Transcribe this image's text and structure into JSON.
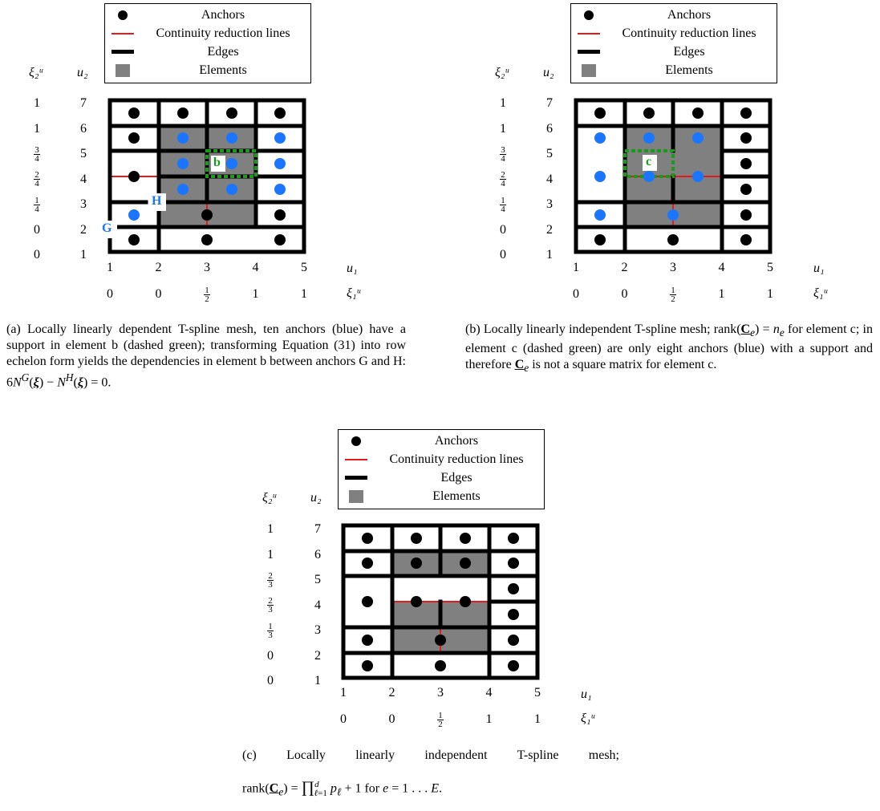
{
  "colors": {
    "anchor_black": "#000000",
    "anchor_blue": "#1a75ff",
    "continuity_red": "#e41a1c",
    "element_gray": "#808080",
    "dashed_green": "#1a9a1a",
    "label_blue": "#1a75ff",
    "label_green": "#1a9a1a"
  },
  "legend": {
    "anchors": "Anchors",
    "continuity": "Continuity reduction lines",
    "edges": "Edges",
    "elements": "Elements"
  },
  "axes": {
    "y_param_label": "ξ₂ᵘ",
    "y_index_label": "u₂",
    "x_index_label": "u₁",
    "x_param_label": "ξ₁ᵘ",
    "u_ticks": [
      "1",
      "2",
      "3",
      "4",
      "5"
    ],
    "v_ticks": [
      "1",
      "2",
      "3",
      "4",
      "5",
      "6",
      "7"
    ]
  },
  "panels": [
    {
      "id": "a",
      "xi2": [
        "0",
        "0",
        "1/4",
        "2/4",
        "3/4",
        "1",
        "1"
      ],
      "xi1": [
        "0",
        "0",
        "1/2",
        "1",
        "1"
      ],
      "labels": {
        "b": "b",
        "G": "G",
        "H": "H"
      },
      "caption": "(a) Locally linearly dependent T-spline mesh, ten anchors (blue) have a support in element b (dashed green); transforming Equation (31) into row echelon form yields the dependencies in element b between anchors G and H: 6N^G(ξ) − N^H(ξ) = 0."
    },
    {
      "id": "b",
      "xi2": [
        "0",
        "0",
        "1/4",
        "2/4",
        "3/4",
        "1",
        "1"
      ],
      "xi1": [
        "0",
        "0",
        "1/2",
        "1",
        "1"
      ],
      "labels": {
        "c": "c"
      },
      "caption": "(b) Locally linearly independent T-spline mesh; rank(C_e) = n_e for element c; in element c (dashed green) are only eight anchors (blue) with a support and therefore C_e is not a square matrix for element c."
    },
    {
      "id": "c",
      "xi2": [
        "0",
        "0",
        "1/3",
        "2/3",
        "2/3",
        "1",
        "1"
      ],
      "xi1": [
        "0",
        "0",
        "1/2",
        "1",
        "1"
      ],
      "caption_line1": "(c) Locally linearly independent T-spline mesh;",
      "caption_line2": "rank(C_e) = ∏ p_ℓ + 1 for e = 1 . . . E."
    }
  ]
}
